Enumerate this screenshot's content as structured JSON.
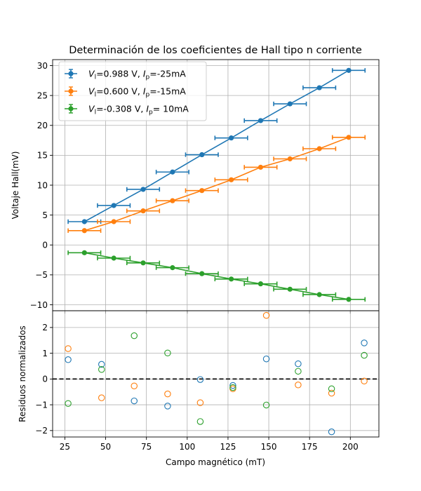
{
  "chart_data": [
    {
      "type": "line",
      "title": "Determinación de los coeficientes de Hall tipo n corriente",
      "ylabel": "Voltaje Hall(mV)",
      "xlabel": "",
      "xlim": [
        17.5,
        217.5
      ],
      "ylim": [
        -11,
        31
      ],
      "x_ticks": [
        25,
        50,
        75,
        100,
        125,
        150,
        175,
        200
      ],
      "y_ticks": [
        -10,
        -5,
        0,
        5,
        10,
        15,
        20,
        25,
        30
      ],
      "y_tick_labels": [
        "−10",
        "−5",
        "0",
        "5",
        "10",
        "15",
        "20",
        "25",
        "30"
      ],
      "grid": true,
      "legend_position": "upper-left",
      "series": [
        {
          "name": "V_l=0.988 V, I_p=-25mA",
          "legend_parts": [
            "V",
            "l",
            "=0.988 V, ",
            "I",
            "p",
            "=-25mA"
          ],
          "color": "#1f77b4",
          "x": [
            37,
            55,
            73,
            91,
            109,
            127,
            145,
            163,
            181,
            199
          ],
          "y": [
            3.9,
            6.6,
            9.3,
            12.2,
            15.1,
            17.9,
            20.8,
            23.6,
            26.3,
            29.2
          ],
          "xerr": 10
        },
        {
          "name": "V_l=0.600 V, I_p=-15mA",
          "legend_parts": [
            "V",
            "l",
            "=0.600 V, ",
            "I",
            "p",
            "=-15mA"
          ],
          "color": "#ff7f0e",
          "x": [
            37,
            55,
            73,
            91,
            109,
            127,
            145,
            163,
            181,
            199
          ],
          "y": [
            2.4,
            3.9,
            5.7,
            7.4,
            9.1,
            10.9,
            13.0,
            14.4,
            16.1,
            18.0
          ],
          "xerr": 10
        },
        {
          "name": "V_l=-0.308 V, I_p= 10mA",
          "legend_parts": [
            "V",
            "l",
            "=-0.308 V, ",
            "I",
            "p",
            "= 10mA"
          ],
          "color": "#2ca02c",
          "x": [
            37,
            55,
            73,
            91,
            109,
            127,
            145,
            163,
            181,
            199
          ],
          "y": [
            -1.3,
            -2.2,
            -3.0,
            -3.8,
            -4.8,
            -5.7,
            -6.5,
            -7.4,
            -8.3,
            -9.1
          ],
          "xerr": 10
        }
      ]
    },
    {
      "type": "scatter",
      "title": "",
      "xlabel": "Campo magnético (mT)",
      "ylabel": "Residuos normalizados",
      "xlim": [
        17.5,
        217.5
      ],
      "ylim": [
        -2.25,
        2.65
      ],
      "x_ticks": [
        25,
        50,
        75,
        100,
        125,
        150,
        175,
        200
      ],
      "y_ticks": [
        -2,
        -1,
        0,
        1,
        2
      ],
      "y_tick_labels": [
        "−2",
        "−1",
        "0",
        "1",
        "2"
      ],
      "grid": true,
      "reference_line": {
        "y": 0,
        "style": "dashed",
        "color": "#000000"
      },
      "series": [
        {
          "color": "#1f77b4",
          "x": [
            27,
            47.5,
            67.5,
            88,
            108,
            128,
            148.5,
            168,
            188.5,
            208.5
          ],
          "y": [
            0.75,
            0.57,
            -0.85,
            -1.05,
            -0.02,
            -0.25,
            0.78,
            0.59,
            -2.05,
            1.4
          ]
        },
        {
          "color": "#ff7f0e",
          "x": [
            27,
            47.5,
            67.5,
            88,
            108,
            128,
            148.5,
            168,
            188.5,
            208.5
          ],
          "y": [
            1.18,
            -0.73,
            -0.27,
            -0.58,
            -0.92,
            -0.38,
            2.47,
            -0.23,
            -0.55,
            -0.08
          ]
        },
        {
          "color": "#2ca02c",
          "x": [
            27,
            47.5,
            67.5,
            88,
            108,
            128,
            148.5,
            168,
            188.5,
            208.5
          ],
          "y": [
            -0.95,
            0.37,
            1.68,
            1.01,
            -1.65,
            -0.33,
            -1.01,
            0.3,
            -0.38,
            0.92
          ]
        }
      ]
    }
  ]
}
